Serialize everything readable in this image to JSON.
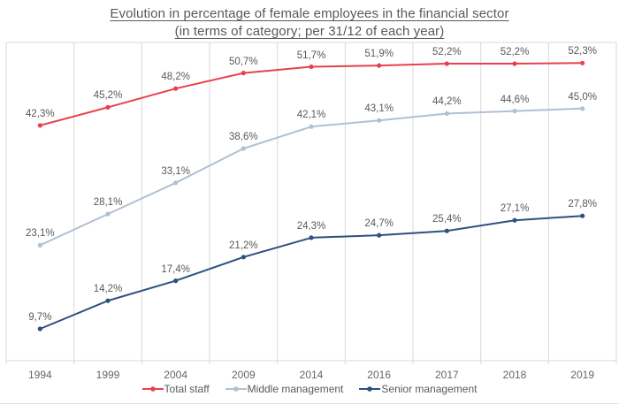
{
  "chart_data": {
    "type": "line",
    "title": "Evolution in percentage of female employees in the financial sector (in terms of category; per 31/12 of each year)",
    "title_lines": {
      "line1": "Evolution in percentage of female employees in the financial sector",
      "line2": "(in terms of category; per 31/12 of each year)"
    },
    "categories": [
      "1994",
      "1999",
      "2004",
      "2009",
      "2014",
      "2016",
      "2017",
      "2018",
      "2019"
    ],
    "series": [
      {
        "name": "Total staff",
        "color": "#e6424d",
        "values": [
          42.3,
          45.2,
          48.2,
          50.7,
          51.7,
          51.9,
          52.2,
          52.2,
          52.3
        ],
        "labels": [
          "42,3%",
          "45,2%",
          "48,2%",
          "50,7%",
          "51,7%",
          "51,9%",
          "52,2%",
          "52,2%",
          "52,3%"
        ]
      },
      {
        "name": "Middle management",
        "color": "#b0c0d4",
        "values": [
          23.1,
          28.1,
          33.1,
          38.6,
          42.1,
          43.1,
          44.2,
          44.6,
          45.0
        ],
        "labels": [
          "23,1%",
          "28,1%",
          "33,1%",
          "38,6%",
          "42,1%",
          "43,1%",
          "44,2%",
          "44,6%",
          "45,0%"
        ]
      },
      {
        "name": "Senior management",
        "color": "#2e507f",
        "values": [
          9.7,
          14.2,
          17.4,
          21.2,
          24.3,
          24.7,
          25.4,
          27.1,
          27.8
        ],
        "labels": [
          "9,7%",
          "14,2%",
          "17,4%",
          "21,2%",
          "24,3%",
          "24,7%",
          "25,4%",
          "27,1%",
          "27,8%"
        ]
      }
    ],
    "ylim": [
      4.6,
      55.6
    ],
    "grid": "vertical-between-categories",
    "legend_position": "bottom",
    "data_labels": "above-points",
    "decimal_separator": ","
  },
  "colors": {
    "background": "#ffffff",
    "gridline": "#d9d9d9",
    "axis_line": "#d9d9d9",
    "title_text": "#595959",
    "label_text": "#595959",
    "axis_text": "#666666"
  }
}
